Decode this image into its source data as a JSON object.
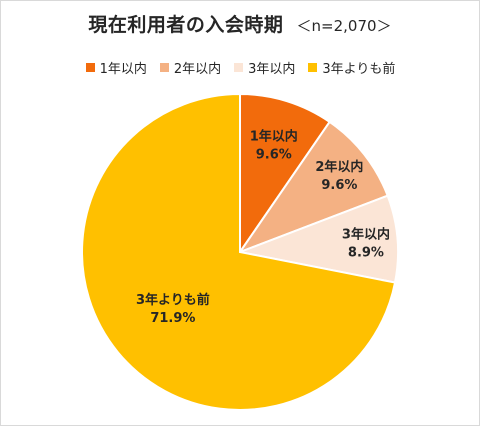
{
  "header": {
    "title": "現在利用者の入会時期",
    "subtitle": "＜n=2,070＞"
  },
  "chart_data": {
    "type": "pie",
    "categories": [
      "1年以内",
      "2年以内",
      "3年以内",
      "3年よりも前"
    ],
    "values": [
      9.6,
      9.6,
      8.9,
      71.9
    ],
    "value_labels": [
      "9.6%",
      "9.6%",
      "8.9%",
      "71.9%"
    ],
    "colors": [
      "#f26b0c",
      "#f4b183",
      "#fbe5d6",
      "#ffc000"
    ],
    "legend_position": "top",
    "start": "12 o'clock, clockwise"
  }
}
